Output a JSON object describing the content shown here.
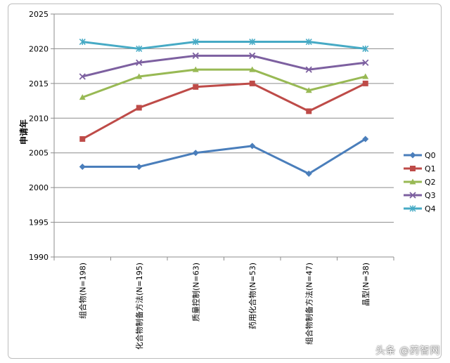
{
  "chart_data": {
    "type": "line",
    "title": "",
    "ylabel": "申请年",
    "xlabel": "",
    "ylim": [
      1990,
      2025
    ],
    "yticks": [
      1990,
      1995,
      2000,
      2005,
      2010,
      2015,
      2020,
      2025
    ],
    "categories": [
      "组合物(N=198)",
      "化合物制备方法(N=195)",
      "质量控制(N=63)",
      "药用化合物(N=53)",
      "组合物制备方法(N=47)",
      "晶型(N=38)"
    ],
    "grid": "horizontal",
    "legend_position": "right",
    "series": [
      {
        "name": "Q0",
        "color": "#4a7ebb",
        "marker": "diamond",
        "values": [
          2003,
          2003,
          2005,
          2006,
          2002,
          2007
        ]
      },
      {
        "name": "Q1",
        "color": "#be4b48",
        "marker": "square",
        "values": [
          2007,
          2011.5,
          2014.5,
          2015,
          2011,
          2015
        ]
      },
      {
        "name": "Q2",
        "color": "#98b954",
        "marker": "triangle",
        "values": [
          2013,
          2016,
          2017,
          2017,
          2014,
          2016
        ]
      },
      {
        "name": "Q3",
        "color": "#7d60a0",
        "marker": "x",
        "values": [
          2016,
          2018,
          2019,
          2019,
          2017,
          2018
        ]
      },
      {
        "name": "Q4",
        "color": "#46aac5",
        "marker": "star",
        "values": [
          2021,
          2020,
          2021,
          2021,
          2021,
          2020
        ]
      }
    ]
  },
  "watermark": "头条 @药智网"
}
